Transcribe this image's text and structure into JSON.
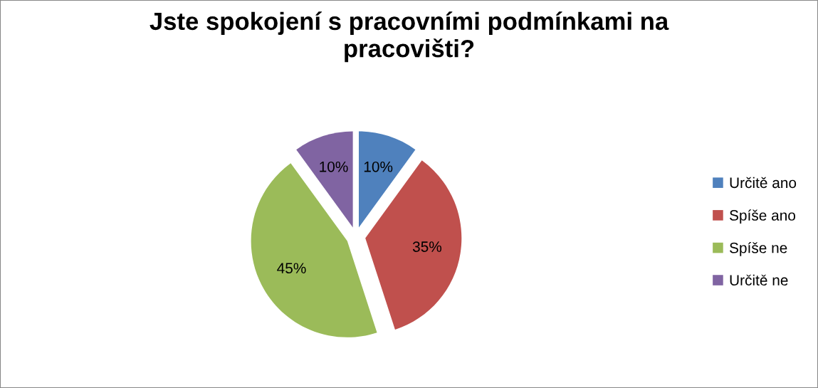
{
  "chart_data": {
    "type": "pie",
    "title": "Jste spokojení s pracovními podmínkami na\npracovišti?",
    "categories": [
      "Určitě ano",
      "Spíše ano",
      "Spíše ne",
      "Určitě ne"
    ],
    "values": [
      10,
      35,
      45,
      10
    ],
    "colors": [
      "#4f81bd",
      "#c0504d",
      "#9bbb59",
      "#8064a2"
    ],
    "value_labels": [
      "10%",
      "35%",
      "45%",
      "10%"
    ],
    "legend": "right"
  }
}
